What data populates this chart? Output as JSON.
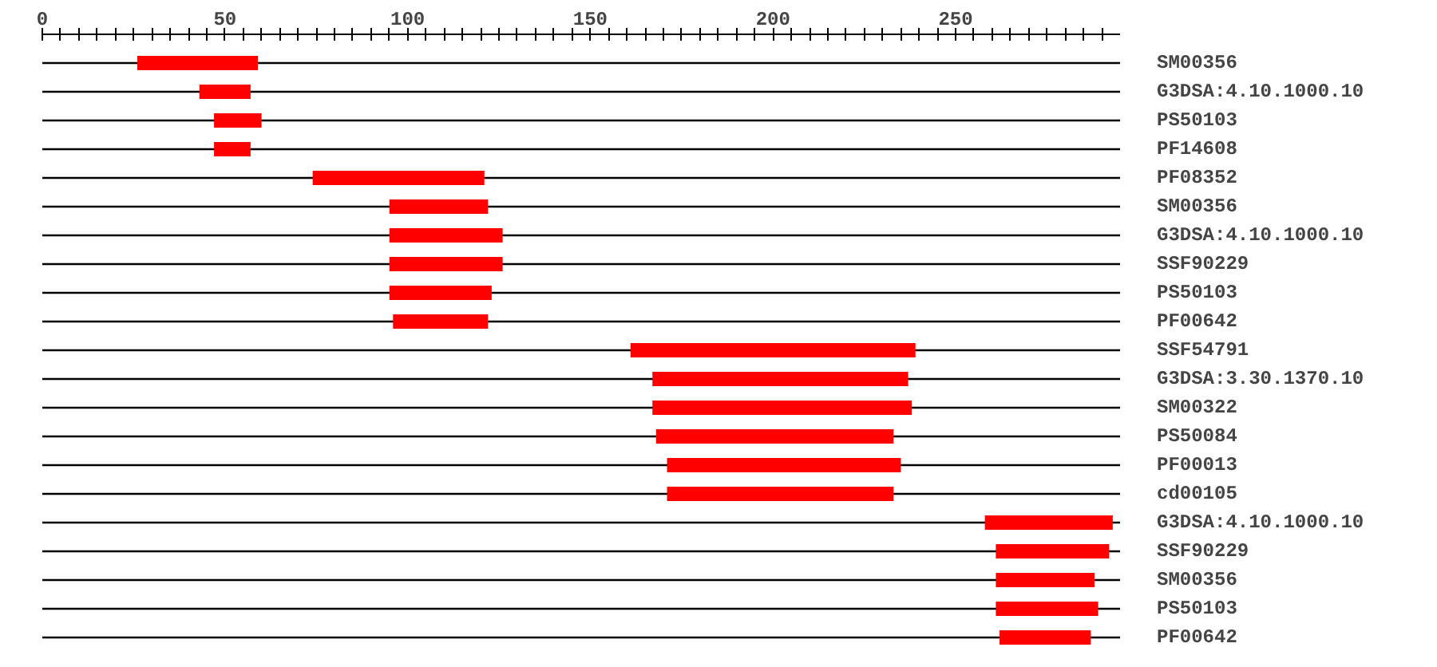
{
  "chart_data": {
    "type": "bar",
    "orientation": "horizontal",
    "categories": [
      "SM00356",
      "G3DSA:4.10.1000.10",
      "PS50103",
      "PF14608",
      "PF08352",
      "SM00356",
      "G3DSA:4.10.1000.10",
      "SSF90229",
      "PS50103",
      "PF00642",
      "SSF54791",
      "G3DSA:3.30.1370.10",
      "SM00322",
      "PS50084",
      "PF00013",
      "cd00105",
      "G3DSA:4.10.1000.10",
      "SSF90229",
      "SM00356",
      "PS50103",
      "PF00642"
    ],
    "base": [
      26,
      43,
      47,
      47,
      74,
      95,
      95,
      95,
      95,
      96,
      161,
      167,
      167,
      168,
      171,
      171,
      258,
      261,
      261,
      261,
      262
    ],
    "values": [
      33,
      14,
      13,
      10,
      47,
      27,
      31,
      31,
      28,
      26,
      78,
      70,
      71,
      65,
      64,
      62,
      35,
      31,
      27,
      28,
      25
    ],
    "color": "#ff0000",
    "xlim": [
      0,
      295
    ],
    "xticks": [
      0,
      {
        "value": 5,
        "label": null
      },
      {
        "value": 10,
        "label": null
      },
      {
        "value": 15,
        "label": null
      },
      {
        "value": 20,
        "label": null
      },
      {
        "value": 25,
        "label": null
      },
      {
        "value": 30,
        "label": null
      },
      {
        "value": 35,
        "label": null
      },
      {
        "value": 40,
        "label": null
      },
      {
        "value": 45,
        "label": null
      },
      50,
      {
        "value": 55,
        "label": null
      },
      {
        "value": 60,
        "label": null
      },
      {
        "value": 65,
        "label": null
      },
      {
        "value": 70,
        "label": null
      },
      {
        "value": 75,
        "label": null
      },
      {
        "value": 80,
        "label": null
      },
      {
        "value": 85,
        "label": null
      },
      {
        "value": 90,
        "label": null
      },
      {
        "value": 95,
        "label": null
      },
      100,
      {
        "value": 105,
        "label": null
      },
      {
        "value": 110,
        "label": null
      },
      {
        "value": 115,
        "label": null
      },
      {
        "value": 120,
        "label": null
      },
      {
        "value": 125,
        "label": null
      },
      {
        "value": 130,
        "label": null
      },
      {
        "value": 135,
        "label": null
      },
      {
        "value": 140,
        "label": null
      },
      {
        "value": 145,
        "label": null
      },
      150,
      {
        "value": 155,
        "label": null
      },
      {
        "value": 160,
        "label": null
      },
      {
        "value": 165,
        "label": null
      },
      {
        "value": 170,
        "label": null
      },
      {
        "value": 175,
        "label": null
      },
      {
        "value": 180,
        "label": null
      },
      {
        "value": 185,
        "label": null
      },
      {
        "value": 190,
        "label": null
      },
      {
        "value": 195,
        "label": null
      },
      200,
      {
        "value": 205,
        "label": null
      },
      {
        "value": 210,
        "label": null
      },
      {
        "value": 215,
        "label": null
      },
      {
        "value": 220,
        "label": null
      },
      {
        "value": 225,
        "label": null
      },
      {
        "value": 230,
        "label": null
      },
      {
        "value": 235,
        "label": null
      },
      {
        "value": 240,
        "label": null
      },
      {
        "value": 245,
        "label": null
      },
      250,
      {
        "value": 255,
        "label": null
      },
      {
        "value": 260,
        "label": null
      },
      {
        "value": 265,
        "label": null
      },
      {
        "value": 270,
        "label": null
      },
      {
        "value": 275,
        "label": null
      },
      {
        "value": 280,
        "label": null
      },
      {
        "value": 285,
        "label": null
      },
      {
        "value": 290,
        "label": null
      }
    ],
    "grid": "y"
  }
}
